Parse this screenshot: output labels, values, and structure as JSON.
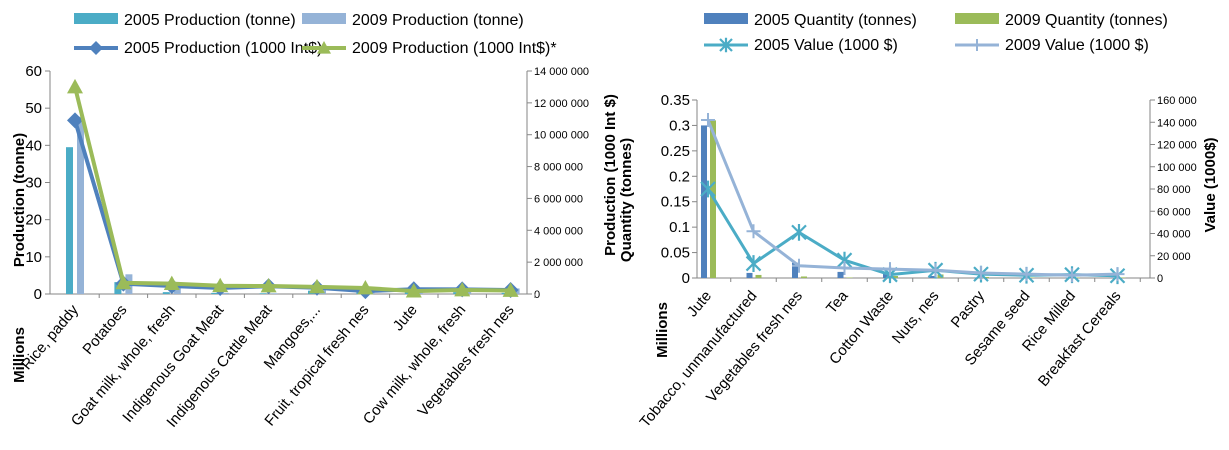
{
  "chart_data": [
    {
      "type": "bar",
      "categories": [
        "Rice, paddy",
        "Potatoes",
        "Goat milk, whole, fresh",
        "Indigenous Goat Meat",
        "Indigenous Cattle Meat",
        "Mangoes,...",
        "Fruit, tropical fresh nes",
        "Jute",
        "Cow milk, whole, fresh",
        "Vegetables fresh nes"
      ],
      "ylabel": "Production (tonne)",
      "ylabel_unit": "Millions",
      "y2label": "",
      "ylim": [
        0,
        60
      ],
      "y2lim": [
        0,
        14000000
      ],
      "yticks": [
        "0",
        "10",
        "20",
        "30",
        "40",
        "50",
        "60"
      ],
      "y2ticks": [
        "0",
        "2 000 000",
        "4 000 000",
        "6 000 000",
        "8 000 000",
        "10 000 000",
        "12 000 000",
        "14 000 000"
      ],
      "legend_position": "top",
      "bar_series": [
        {
          "name": "2005 Production (tonne)",
          "color": "#4bacc6",
          "values": [
            39.5,
            3.2,
            0.5,
            0.3,
            0.2,
            0.9,
            0.9,
            0.8,
            0.5,
            0.3
          ]
        },
        {
          "name": "2009 Production (tonne)",
          "color": "#95b3d7",
          "values": [
            47.7,
            5.3,
            2.3,
            0.3,
            0.2,
            1.0,
            1.4,
            0.9,
            0.6,
            1.5
          ]
        }
      ],
      "line_series": [
        {
          "name": "2005 Production (1000 Int$)",
          "color": "#4f81bd",
          "marker": "diamond",
          "axis": "right",
          "values": [
            10900000,
            650000,
            500000,
            380000,
            490000,
            390000,
            180000,
            300000,
            290000,
            250000
          ]
        },
        {
          "name": "2009 Production (1000 Int$)*",
          "color": "#9bbb59",
          "marker": "triangle",
          "axis": "right",
          "values": [
            13000000,
            700000,
            650000,
            520000,
            500000,
            450000,
            380000,
            180000,
            250000,
            220000
          ]
        }
      ]
    },
    {
      "type": "bar",
      "categories": [
        "Jute",
        "Tobacco, unmanufactured",
        "Vegetables fresh nes",
        "Tea",
        "Cotton Waste",
        "Nuts, nes",
        "Pastry",
        "Sesame seed",
        "Rice Milled",
        "Breakfast Cereals"
      ],
      "ylabel": "Quantity (tonnes)",
      "ylabel_top": "Production (1000 Int $)",
      "ylabel_unit": "Millions",
      "y2label": "Value (1000$)",
      "ylim": [
        0,
        0.35
      ],
      "y2lim": [
        0,
        160000
      ],
      "yticks": [
        "0",
        "0.05",
        "0.1",
        "0.15",
        "0.2",
        "0.25",
        "0.3",
        "0.35"
      ],
      "y2ticks": [
        "0",
        "20 000",
        "40 000",
        "60 000",
        "80 000",
        "100 000",
        "120 000",
        "140 000",
        "160 000"
      ],
      "legend_position": "top",
      "bar_series": [
        {
          "name": "2005 Quantity (tonnes)",
          "color": "#4f81bd",
          "values": [
            0.3,
            0.01,
            0.03,
            0.012,
            0.01,
            0.004,
            0.001,
            0.001,
            0.001,
            0.001
          ]
        },
        {
          "name": "2009 Quantity (tonnes)",
          "color": "#9bbb59",
          "values": [
            0.31,
            0.006,
            0.003,
            0.001,
            0.004,
            0.007,
            0.002,
            0.001,
            0.001,
            0.001
          ]
        }
      ],
      "line_series": [
        {
          "name": "2005 Value (1000 $)",
          "color": "#4bacc6",
          "marker": "star",
          "axis": "right",
          "values": [
            80000,
            13000,
            41000,
            16000,
            3000,
            7000,
            3500,
            2500,
            3000,
            2000
          ]
        },
        {
          "name": "2009 Value (1000 $)",
          "color": "#95b3d7",
          "marker": "plus",
          "axis": "right",
          "values": [
            142000,
            42000,
            11000,
            9000,
            8000,
            7000,
            4500,
            3500,
            2500,
            3500
          ]
        }
      ]
    }
  ]
}
